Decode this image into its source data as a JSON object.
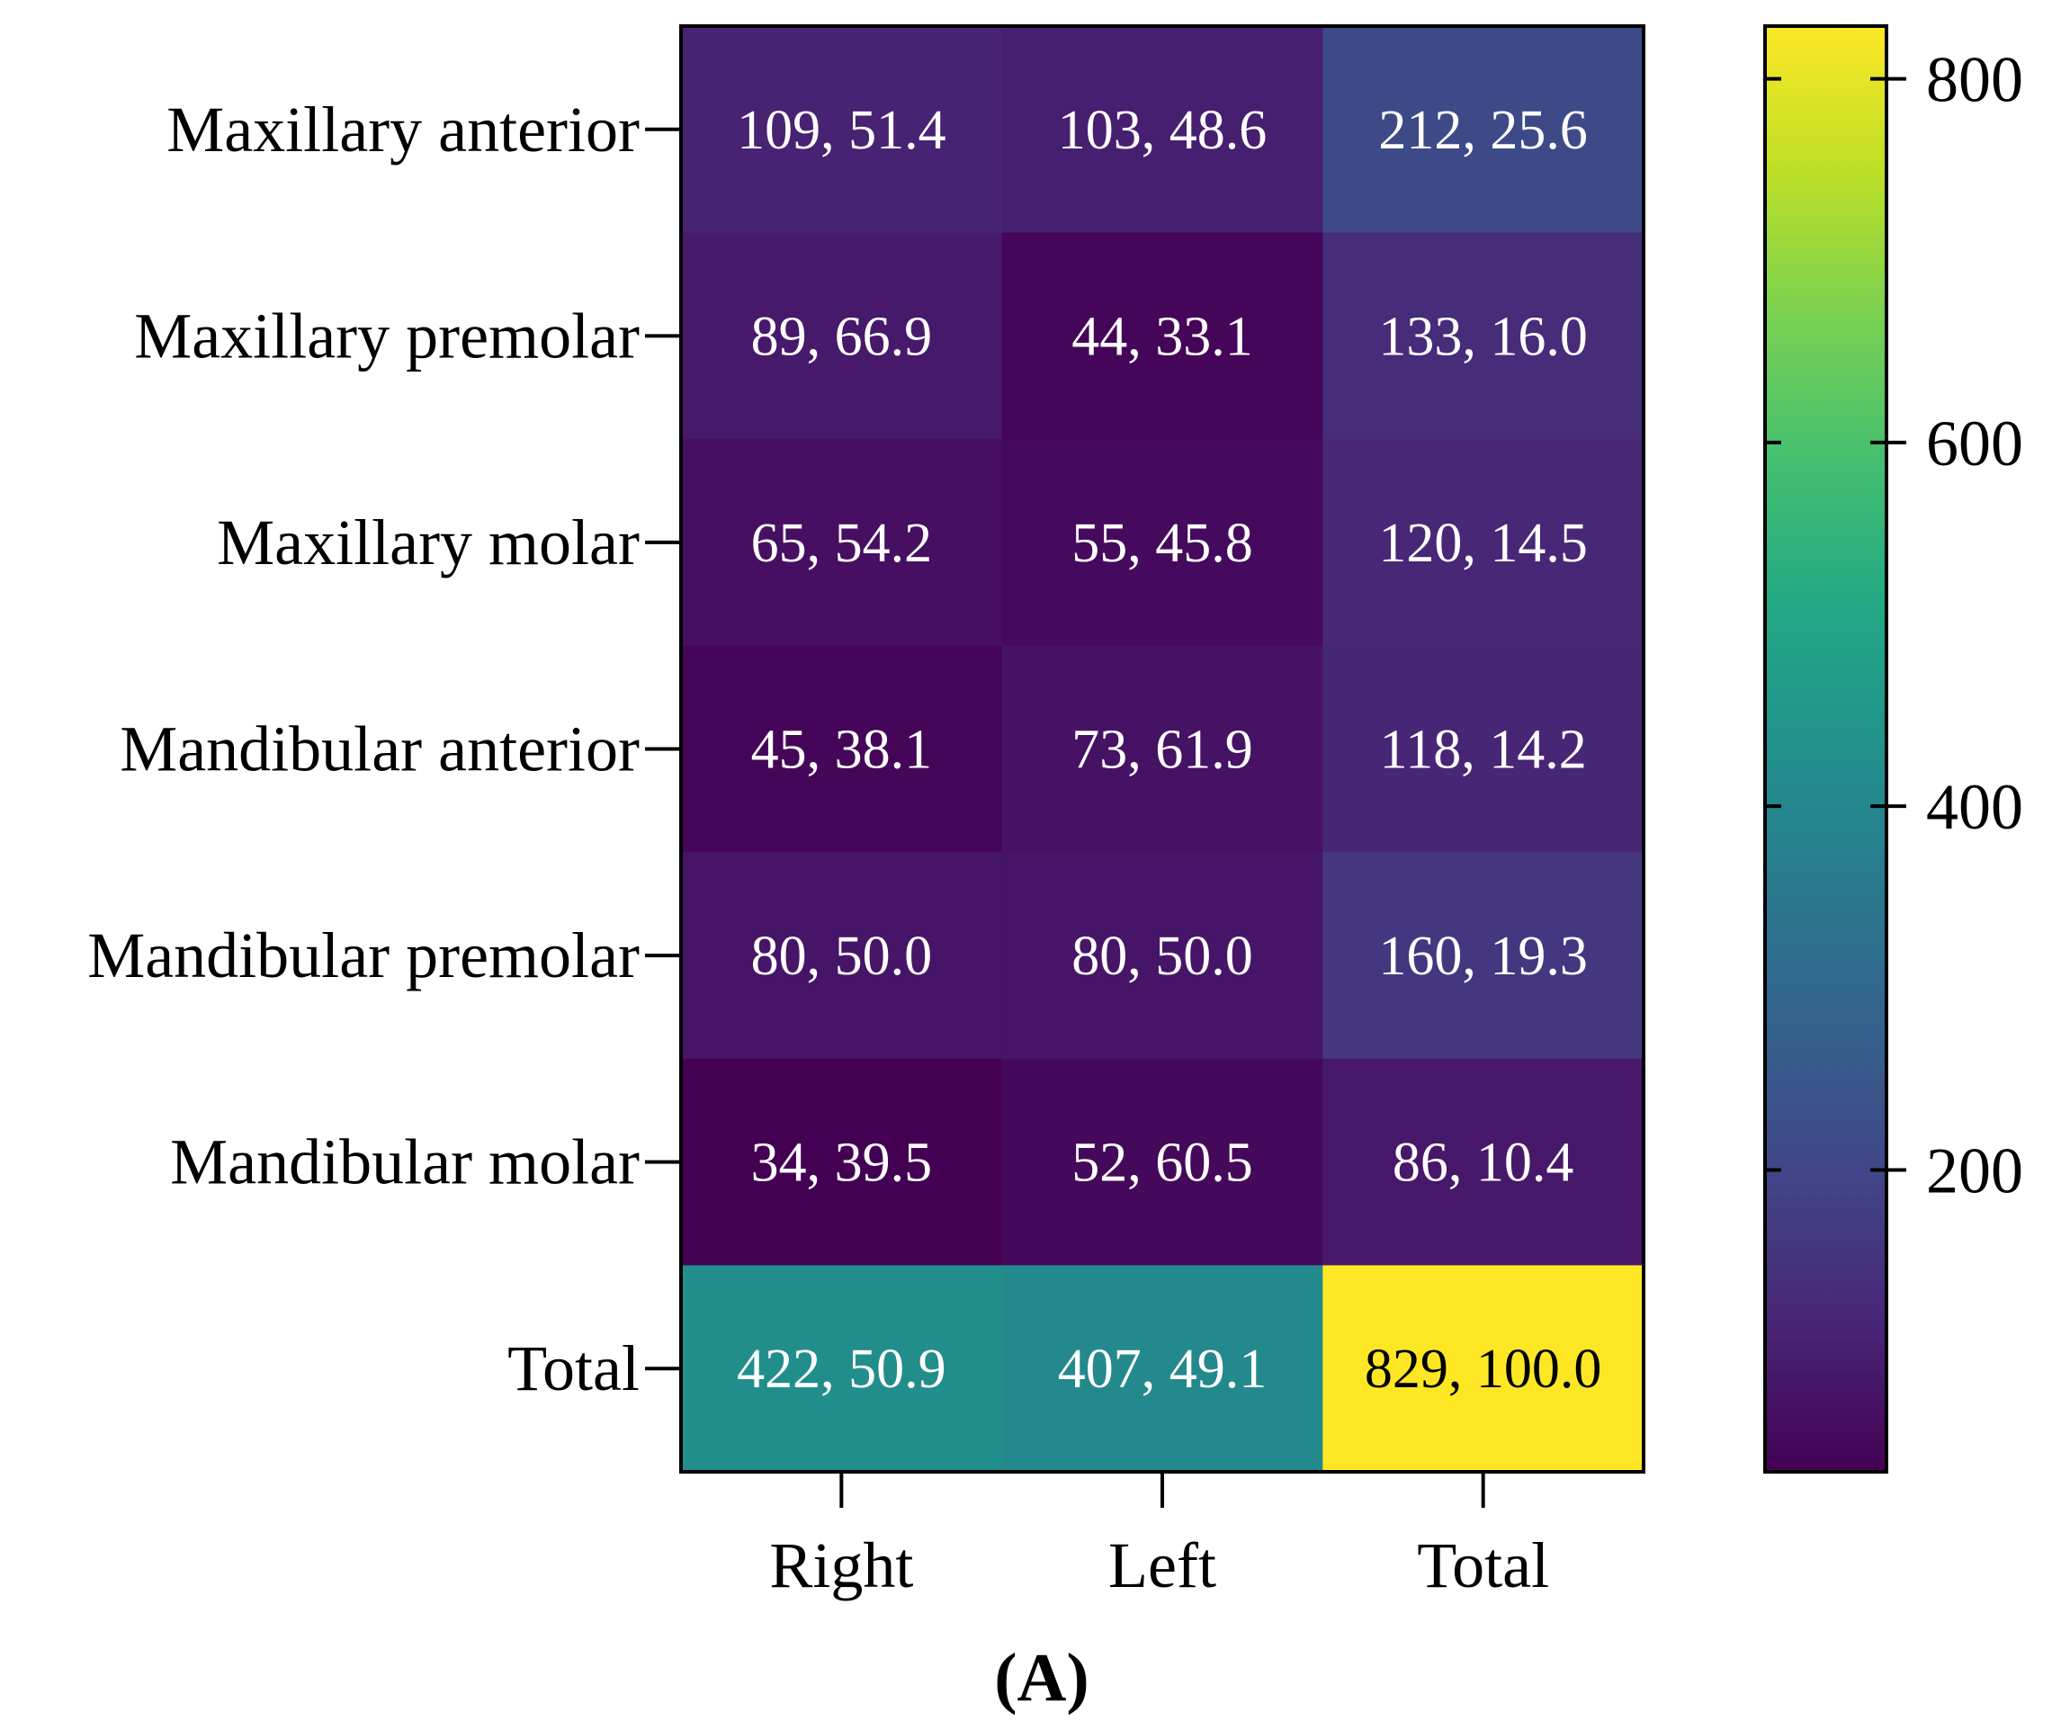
{
  "chart_data": {
    "type": "heatmap",
    "title": "",
    "panel_label": "(A)",
    "rows": [
      "Maxillary anterior",
      "Maxillary premolar",
      "Maxillary molar",
      "Mandibular anterior",
      "Mandibular premolar",
      "Mandibular molar",
      "Total"
    ],
    "columns": [
      "Right",
      "Left",
      "Total"
    ],
    "values": [
      [
        109,
        103,
        212
      ],
      [
        89,
        44,
        133
      ],
      [
        65,
        55,
        120
      ],
      [
        45,
        73,
        118
      ],
      [
        80,
        80,
        160
      ],
      [
        34,
        52,
        86
      ],
      [
        422,
        407,
        829
      ]
    ],
    "percentages": [
      [
        "51.4",
        "48.6",
        "25.6"
      ],
      [
        "66.9",
        "33.1",
        "16.0"
      ],
      [
        "54.2",
        "45.8",
        "14.5"
      ],
      [
        "38.1",
        "61.9",
        "14.2"
      ],
      [
        "50.0",
        "50.0",
        "19.3"
      ],
      [
        "39.5",
        "60.5",
        "10.4"
      ],
      [
        "50.9",
        "49.1",
        "100.0"
      ]
    ],
    "cell_labels": [
      [
        "109, 51.4",
        "103, 48.6",
        "212, 25.6"
      ],
      [
        "89, 66.9",
        "44, 33.1",
        "133, 16.0"
      ],
      [
        "65, 54.2",
        "55, 45.8",
        "120, 14.5"
      ],
      [
        "45, 38.1",
        "73, 61.9",
        "118, 14.2"
      ],
      [
        "80, 50.0",
        "80, 50.0",
        "160, 19.3"
      ],
      [
        "34, 39.5",
        "52, 60.5",
        "86, 10.4"
      ],
      [
        "422, 50.9",
        "407, 49.1",
        "829, 100.0"
      ]
    ],
    "colormap": "viridis",
    "colorbar": {
      "range": [
        34,
        829
      ],
      "ticks": [
        200,
        400,
        600,
        800
      ],
      "tick_labels": [
        "200",
        "400",
        "600",
        "800"
      ],
      "position": "right"
    },
    "grid": false,
    "legend": "none"
  }
}
